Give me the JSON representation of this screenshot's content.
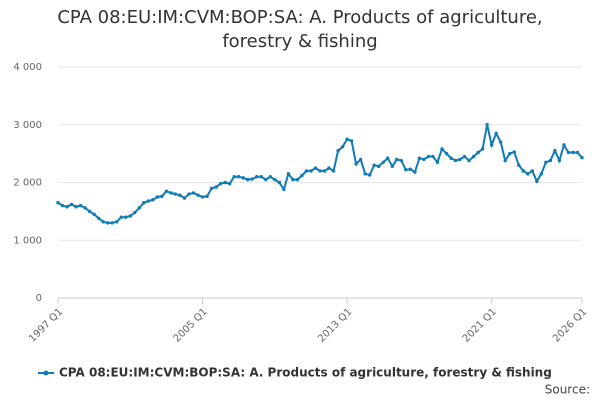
{
  "chart_data": {
    "type": "line",
    "title": "CPA 08:EU:IM:CVM:BOP:SA: A. Products of agriculture, forestry & fishing",
    "source": "Source:",
    "categories": [
      "1997 Q1",
      null,
      null,
      null,
      null,
      null,
      null,
      null,
      null,
      null,
      null,
      null,
      null,
      null,
      null,
      null,
      null,
      null,
      null,
      null,
      null,
      null,
      null,
      null,
      null,
      null,
      null,
      null,
      null,
      null,
      null,
      null,
      "2005 Q1",
      null,
      null,
      null,
      null,
      null,
      null,
      null,
      null,
      null,
      null,
      null,
      null,
      null,
      null,
      null,
      null,
      null,
      null,
      null,
      null,
      null,
      null,
      null,
      null,
      null,
      null,
      null,
      null,
      null,
      null,
      null,
      "2013 Q1",
      null,
      null,
      null,
      null,
      null,
      null,
      null,
      null,
      null,
      null,
      null,
      null,
      null,
      null,
      null,
      null,
      null,
      null,
      null,
      null,
      null,
      null,
      null,
      null,
      null,
      null,
      null,
      null,
      null,
      null,
      null,
      "2021 Q1",
      null,
      null,
      null,
      null,
      null,
      null,
      null,
      null,
      null,
      null,
      null,
      null,
      null,
      null,
      null,
      null,
      null,
      null,
      null,
      "2026 Q1"
    ],
    "series": [
      {
        "name": "CPA 08:EU:IM:CVM:BOP:SA: A. Products of agriculture, forestry & fishing",
        "color": "#0f7bb7",
        "values": [
          1650,
          1600,
          1580,
          1620,
          1580,
          1600,
          1560,
          1500,
          1450,
          1380,
          1320,
          1300,
          1300,
          1320,
          1400,
          1400,
          1420,
          1480,
          1560,
          1650,
          1680,
          1700,
          1750,
          1760,
          1850,
          1820,
          1800,
          1780,
          1730,
          1800,
          1820,
          1780,
          1750,
          1760,
          1900,
          1920,
          1980,
          2000,
          1980,
          2100,
          2100,
          2080,
          2050,
          2060,
          2100,
          2100,
          2050,
          2100,
          2050,
          2000,
          1880,
          2150,
          2050,
          2050,
          2120,
          2200,
          2200,
          2250,
          2200,
          2200,
          2250,
          2200,
          2550,
          2620,
          2750,
          2720,
          2320,
          2400,
          2150,
          2130,
          2300,
          2280,
          2350,
          2420,
          2280,
          2400,
          2380,
          2220,
          2230,
          2180,
          2420,
          2400,
          2450,
          2450,
          2350,
          2580,
          2500,
          2420,
          2380,
          2400,
          2450,
          2380,
          2450,
          2520,
          2580,
          3000,
          2650,
          2850,
          2700,
          2380,
          2500,
          2530,
          2300,
          2200,
          2150,
          2200,
          2020,
          2150,
          2350,
          2380,
          2550,
          2380,
          2650,
          2520,
          2520,
          2520,
          2430
        ]
      }
    ],
    "ylim": [
      0,
      4000
    ],
    "yticks": [
      0,
      {
        "value": 1000,
        "label": "1 000"
      },
      {
        "value": 2000,
        "label": "2 000"
      },
      {
        "value": 3000,
        "label": "3 000"
      },
      {
        "value": 4000,
        "label": "4 000"
      }
    ],
    "grid": true
  }
}
